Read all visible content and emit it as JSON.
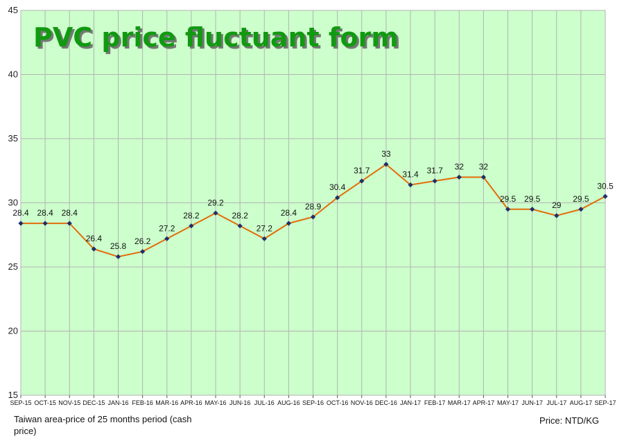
{
  "chart_data": {
    "type": "line",
    "title": "PVC price fluctuant form",
    "categories": [
      "SEP-15",
      "OCT-15",
      "NOV-15",
      "DEC-15",
      "JAN-16",
      "FEB-16",
      "MAR-16",
      "APR-16",
      "MAY-16",
      "JUN-16",
      "JUL-16",
      "AUG-16",
      "SEP-16",
      "OCT-16",
      "NOV-16",
      "DEC-16",
      "JAN-17",
      "FEB-17",
      "MAR-17",
      "APR-17",
      "MAY-17",
      "JUN-17",
      "JUL-17",
      "AUG-17",
      "SEP-17"
    ],
    "values": [
      28.4,
      28.4,
      28.4,
      26.4,
      25.8,
      26.2,
      27.2,
      28.2,
      29.2,
      28.2,
      27.2,
      28.4,
      28.9,
      30.4,
      31.7,
      33,
      31.4,
      31.7,
      32,
      32,
      29.5,
      29.5,
      29,
      29.5,
      30.5
    ],
    "data_labels": [
      "28.4",
      "28.4",
      "28.4",
      "26.4",
      "25.8",
      "26.2",
      "27.2",
      "28.2",
      "29.2",
      "28.2",
      "27.2",
      "28.4",
      "28.9",
      "30.4",
      "31.7",
      "33",
      "31.4",
      "31.7",
      "32",
      "32",
      "29.5",
      "29.5",
      "29",
      "29.5",
      "30.5"
    ],
    "ylim": [
      15,
      45
    ],
    "yticks": [
      15,
      20,
      25,
      30,
      35,
      40,
      45
    ],
    "grid": true,
    "colors": {
      "plot_background": "#ccffcc",
      "line": "#e36c09",
      "marker": "#1f2f6b",
      "title": "#119911",
      "title_shadow": "#777777",
      "grid": "#b3b3b3"
    },
    "footnote_left": "Taiwan area-price of 25 months period (cash price)",
    "footnote_right": "Price: NTD/KG"
  }
}
